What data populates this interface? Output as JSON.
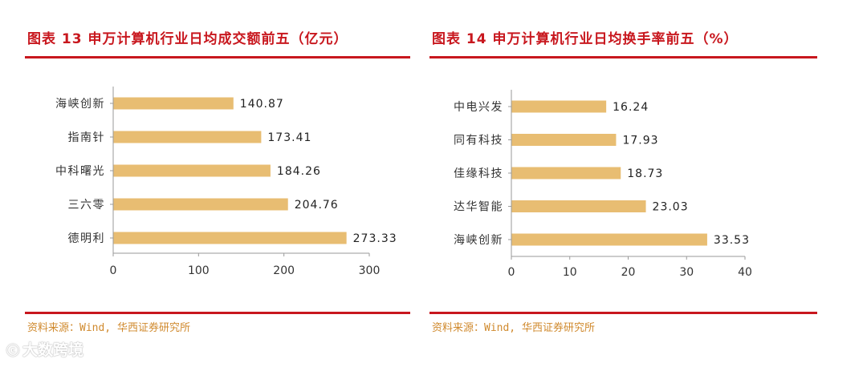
{
  "chart_data": [
    {
      "type": "bar",
      "orientation": "horizontal",
      "title": "图表 13  申万计算机行业日均成交额前五（亿元）",
      "categories": [
        "海峡创新",
        "指南针",
        "中科曙光",
        "三六零",
        "德明利"
      ],
      "values": [
        140.87,
        173.41,
        184.26,
        204.76,
        273.33
      ],
      "value_labels": [
        "140.87",
        "173.41",
        "184.26",
        "204.76",
        "273.33"
      ],
      "xlim": [
        0,
        300
      ],
      "ticks": [
        "0",
        "100",
        "200",
        "300"
      ],
      "tick_values": [
        0,
        100,
        200,
        300
      ],
      "grid": false,
      "bar_color": "#e8bd72",
      "source": "资料来源：Wind, 华西证券研究所"
    },
    {
      "type": "bar",
      "orientation": "horizontal",
      "title": "图表 14  申万计算机行业日均换手率前五（%）",
      "categories": [
        "中电兴发",
        "同有科技",
        "佳缘科技",
        "达华智能",
        "海峡创新"
      ],
      "values": [
        16.24,
        17.93,
        18.73,
        23.03,
        33.53
      ],
      "value_labels": [
        "16.24",
        "17.93",
        "18.73",
        "23.03",
        "33.53"
      ],
      "xlim": [
        0,
        40
      ],
      "ticks": [
        "0",
        "10",
        "20",
        "30",
        "40"
      ],
      "tick_values": [
        0,
        10,
        20,
        30,
        40
      ],
      "grid": false,
      "bar_color": "#e8bd72",
      "source": "资料来源：Wind, 华西证券研究所"
    }
  ],
  "watermark": {
    "logo": "ⓒ",
    "text": "大数跨境"
  }
}
